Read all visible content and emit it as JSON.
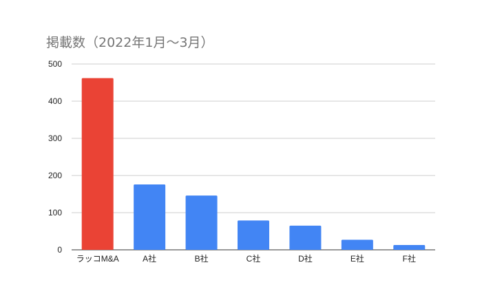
{
  "chart_data": {
    "type": "bar",
    "title": "掲載数（2022年1月～3月）",
    "categories": [
      "ラッコM&A",
      "A社",
      "B社",
      "C社",
      "D社",
      "E社",
      "F社"
    ],
    "values": [
      462,
      176,
      146,
      79,
      65,
      27,
      13
    ],
    "colors": [
      "#ea4335",
      "#4285f4",
      "#4285f4",
      "#4285f4",
      "#4285f4",
      "#4285f4",
      "#4285f4"
    ],
    "ylim": [
      0,
      500
    ],
    "yticks": [
      "0",
      "100",
      "200",
      "300",
      "400",
      "500"
    ],
    "xlabel": "",
    "ylabel": "",
    "grid": true,
    "legend": "none"
  }
}
